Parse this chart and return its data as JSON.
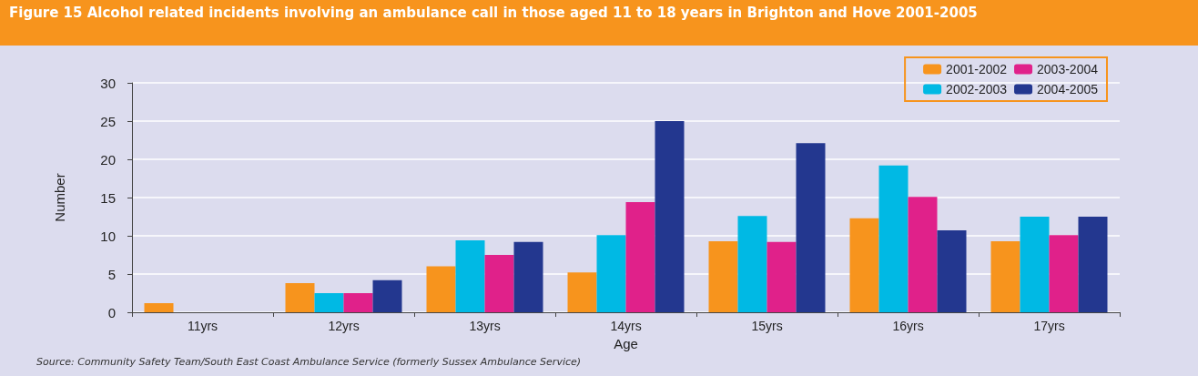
{
  "chart_data": {
    "type": "bar",
    "title": "Figure 15 Alcohol related incidents involving an ambulance call in those aged 11 to 18 years in Brighton and Hove 2001-2005",
    "xlabel": "Age",
    "ylabel": "Number",
    "categories": [
      "11yrs",
      "12yrs",
      "13yrs",
      "14yrs",
      "15yrs",
      "16yrs",
      "17yrs"
    ],
    "series": [
      {
        "name": "2001-2002",
        "color": "#f7941d",
        "values": [
          1.2,
          3.8,
          6.0,
          5.2,
          9.3,
          12.3,
          9.3
        ]
      },
      {
        "name": "2002-2003",
        "color": "#00b9e4",
        "values": [
          0,
          2.5,
          9.4,
          10.1,
          12.6,
          19.2,
          12.5
        ]
      },
      {
        "name": "2003-2004",
        "color": "#e0218a",
        "values": [
          0,
          2.5,
          7.5,
          14.4,
          9.2,
          15.1,
          10.1
        ]
      },
      {
        "name": "2004-2005",
        "color": "#23378f",
        "values": [
          0,
          4.2,
          9.2,
          25,
          22.1,
          10.7,
          12.5
        ]
      }
    ],
    "ylim": [
      0,
      30
    ],
    "yticks": [
      0,
      5,
      10,
      15,
      20,
      25,
      30
    ],
    "grid": "y",
    "legend": "top right",
    "annotations": [
      "Source: Community Safety Team/South East Coast Ambulance Service (formerly Sussex Ambulance Service)"
    ]
  }
}
